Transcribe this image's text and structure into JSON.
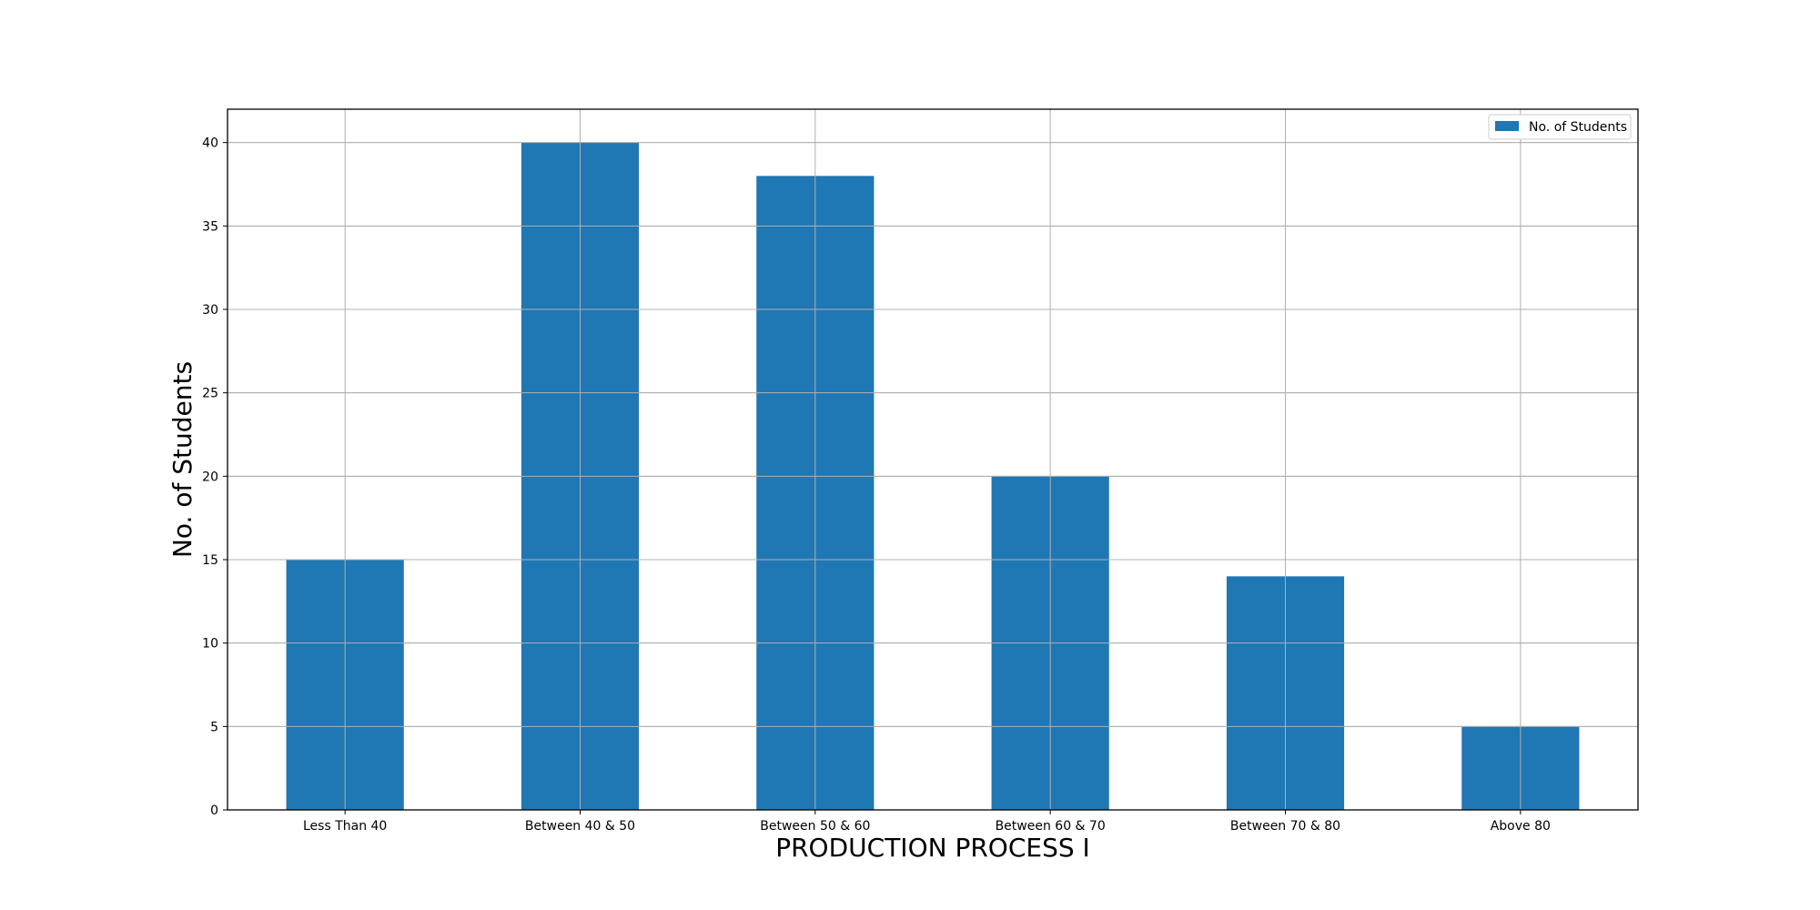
{
  "chart_data": {
    "type": "bar",
    "title": "",
    "xlabel": "PRODUCTION PROCESS I",
    "ylabel": "No. of Students",
    "categories": [
      "Less Than 40",
      "Between 40 & 50",
      "Between 50 & 60",
      "Between 60 & 70",
      "Between 70 & 80",
      "Above 80"
    ],
    "series": [
      {
        "name": "No. of Students",
        "values": [
          15,
          40,
          38,
          20,
          14,
          5
        ],
        "color": "#1f77b4"
      }
    ],
    "ylim": [
      0,
      42
    ],
    "yticks": [
      "0",
      "5",
      "10",
      "15",
      "20",
      "25",
      "30",
      "35",
      "40"
    ],
    "grid": true,
    "legend": "top-right"
  }
}
